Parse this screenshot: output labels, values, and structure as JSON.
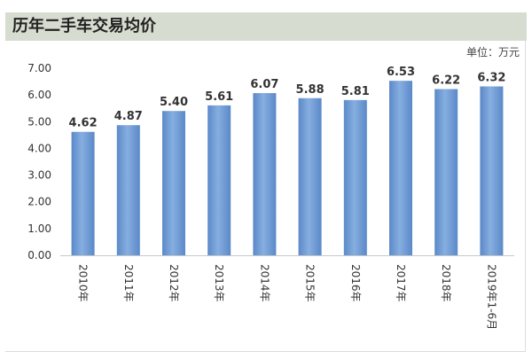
{
  "title": "历年二手车交易均价",
  "unit": "单位：万元",
  "colors": {
    "bar": "#5b89c8",
    "bar_light": "#86aee0",
    "title_bg": "#d7dcd0",
    "axis": "#c8c8c8"
  },
  "chart_data": {
    "type": "bar",
    "title": "历年二手车交易均价",
    "unit": "单位：万元",
    "categories": [
      "2010年",
      "2011年",
      "2012年",
      "2013年",
      "2014年",
      "2015年",
      "2016年",
      "2017年",
      "2018年",
      "2019年1-6月"
    ],
    "values": [
      4.62,
      4.87,
      5.4,
      5.61,
      6.07,
      5.88,
      5.81,
      6.53,
      6.22,
      6.32
    ],
    "value_labels": [
      "4.62",
      "4.87",
      "5.40",
      "5.61",
      "6.07",
      "5.88",
      "5.81",
      "6.53",
      "6.22",
      "6.32"
    ],
    "yticks": [
      "0.00",
      "1.00",
      "2.00",
      "3.00",
      "4.00",
      "5.00",
      "6.00",
      "7.00"
    ],
    "ylim": [
      0,
      7
    ],
    "xlabel": "",
    "ylabel": "",
    "grid": false,
    "legend": "none"
  }
}
